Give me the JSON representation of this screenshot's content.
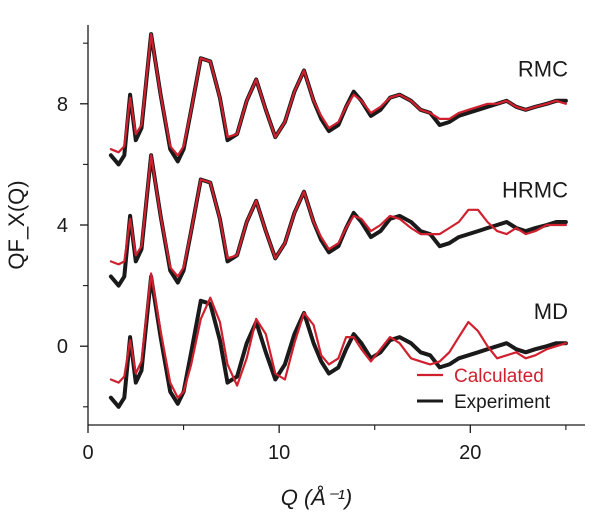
{
  "chart_data": {
    "type": "line",
    "xlabel": "Q (Å⁻¹)",
    "ylabel": "QF_X(Q)",
    "xlim": [
      0,
      26
    ],
    "ylim": [
      -2.6,
      10.6
    ],
    "x_ticks": [
      {
        "value": 0,
        "label": "0"
      },
      {
        "value": 10,
        "label": "10"
      },
      {
        "value": 20,
        "label": "20"
      }
    ],
    "y_ticks": [
      {
        "value": 0,
        "label": "0"
      },
      {
        "value": 4,
        "label": "4"
      },
      {
        "value": 8,
        "label": "8"
      }
    ],
    "x_minor_ticks": [
      5,
      15,
      25
    ],
    "y_minor_ticks": [
      -2,
      2,
      6,
      10
    ],
    "grid": false,
    "legend": {
      "placement": "bottom-right",
      "entries": [
        {
          "name": "Calculated",
          "color": "#d0202e"
        },
        {
          "name": "Experiment",
          "color": "#1a1a1a"
        }
      ]
    },
    "panels": [
      {
        "label": "RMC",
        "offset": 8,
        "series": [
          {
            "name": "Experiment",
            "color": "#1a1a1a",
            "x": [
              1.2,
              1.6,
              1.9,
              2.2,
              2.5,
              2.8,
              3.3,
              3.8,
              4.3,
              4.7,
              5.0,
              5.4,
              5.9,
              6.4,
              6.9,
              7.3,
              7.8,
              8.3,
              8.8,
              9.3,
              9.8,
              10.3,
              10.8,
              11.3,
              11.8,
              12.2,
              12.6,
              13.1,
              13.5,
              13.9,
              14.3,
              14.8,
              15.3,
              15.8,
              16.3,
              16.9,
              17.4,
              17.9,
              18.4,
              18.9,
              19.4,
              19.9,
              20.4,
              20.9,
              21.4,
              21.9,
              22.4,
              22.9,
              23.4,
              24.0,
              24.5,
              25.0
            ],
            "y": [
              -1.7,
              -2.0,
              -1.7,
              0.3,
              -1.2,
              -0.8,
              2.3,
              0.3,
              -1.5,
              -1.9,
              -1.5,
              -0.2,
              1.5,
              1.4,
              0.2,
              -1.2,
              -1.0,
              0.1,
              0.8,
              -0.2,
              -1.1,
              -0.6,
              0.4,
              1.1,
              0.1,
              -0.5,
              -0.9,
              -0.7,
              -0.1,
              0.4,
              0.1,
              -0.4,
              -0.2,
              0.2,
              0.3,
              0.1,
              -0.2,
              -0.3,
              -0.7,
              -0.6,
              -0.4,
              -0.3,
              -0.2,
              -0.1,
              0.0,
              0.1,
              -0.1,
              -0.2,
              -0.1,
              0.0,
              0.1,
              0.1
            ]
          },
          {
            "name": "Calculated",
            "color": "#d0202e",
            "x": [
              1.2,
              1.6,
              1.9,
              2.2,
              2.5,
              2.8,
              3.3,
              3.8,
              4.3,
              4.7,
              5.0,
              5.4,
              5.9,
              6.4,
              6.9,
              7.3,
              7.8,
              8.3,
              8.8,
              9.3,
              9.8,
              10.3,
              10.8,
              11.3,
              11.8,
              12.2,
              12.6,
              13.1,
              13.5,
              13.9,
              14.3,
              14.8,
              15.3,
              15.8,
              16.3,
              16.9,
              17.4,
              17.9,
              18.4,
              18.9,
              19.4,
              19.9,
              20.4,
              20.9,
              21.4,
              21.9,
              22.4,
              22.9,
              23.4,
              24.0,
              24.5,
              25.0
            ],
            "y": [
              -1.5,
              -1.6,
              -1.4,
              0.2,
              -1.0,
              -0.7,
              2.3,
              0.3,
              -1.4,
              -1.7,
              -1.4,
              -0.2,
              1.5,
              1.4,
              0.2,
              -1.1,
              -1.0,
              0.1,
              0.8,
              -0.2,
              -1.1,
              -0.6,
              0.4,
              1.1,
              0.1,
              -0.4,
              -0.8,
              -0.6,
              -0.1,
              0.3,
              0.1,
              -0.3,
              -0.1,
              0.2,
              0.3,
              0.1,
              -0.2,
              -0.3,
              -0.5,
              -0.5,
              -0.3,
              -0.2,
              -0.1,
              0.0,
              0.0,
              0.1,
              -0.1,
              -0.2,
              -0.1,
              0.0,
              0.1,
              0.0
            ]
          }
        ]
      },
      {
        "label": "HRMC",
        "offset": 4,
        "series": [
          {
            "name": "Experiment",
            "color": "#1a1a1a",
            "x": [
              1.2,
              1.6,
              1.9,
              2.2,
              2.5,
              2.8,
              3.3,
              3.8,
              4.3,
              4.7,
              5.0,
              5.4,
              5.9,
              6.4,
              6.9,
              7.3,
              7.8,
              8.3,
              8.8,
              9.3,
              9.8,
              10.3,
              10.8,
              11.3,
              11.8,
              12.2,
              12.6,
              13.1,
              13.5,
              13.9,
              14.3,
              14.8,
              15.3,
              15.8,
              16.3,
              16.9,
              17.4,
              17.9,
              18.4,
              18.9,
              19.4,
              19.9,
              20.4,
              20.9,
              21.4,
              21.9,
              22.4,
              22.9,
              23.4,
              24.0,
              24.5,
              25.0
            ],
            "y": [
              -1.7,
              -2.0,
              -1.7,
              0.3,
              -1.2,
              -0.8,
              2.3,
              0.3,
              -1.5,
              -1.9,
              -1.5,
              -0.2,
              1.5,
              1.4,
              0.2,
              -1.2,
              -1.0,
              0.1,
              0.8,
              -0.2,
              -1.1,
              -0.6,
              0.4,
              1.1,
              0.1,
              -0.5,
              -0.9,
              -0.7,
              -0.1,
              0.4,
              0.1,
              -0.4,
              -0.2,
              0.2,
              0.3,
              0.1,
              -0.2,
              -0.3,
              -0.7,
              -0.6,
              -0.4,
              -0.3,
              -0.2,
              -0.1,
              0.0,
              0.1,
              -0.1,
              -0.2,
              -0.1,
              0.0,
              0.1,
              0.1
            ]
          },
          {
            "name": "Calculated",
            "color": "#d0202e",
            "x": [
              1.2,
              1.6,
              1.9,
              2.2,
              2.5,
              2.8,
              3.3,
              3.8,
              4.3,
              4.7,
              5.0,
              5.4,
              5.9,
              6.4,
              6.9,
              7.3,
              7.8,
              8.3,
              8.8,
              9.3,
              9.8,
              10.3,
              10.8,
              11.3,
              11.8,
              12.2,
              12.6,
              13.1,
              13.5,
              13.9,
              14.3,
              14.8,
              15.3,
              15.8,
              16.3,
              16.9,
              17.4,
              17.9,
              18.4,
              18.9,
              19.4,
              19.9,
              20.4,
              20.9,
              21.4,
              21.9,
              22.4,
              22.9,
              23.4,
              24.0,
              24.5,
              25.0
            ],
            "y": [
              -1.2,
              -1.3,
              -1.2,
              0.2,
              -1.0,
              -0.7,
              2.3,
              0.3,
              -1.4,
              -1.7,
              -1.4,
              -0.2,
              1.5,
              1.4,
              0.2,
              -1.1,
              -1.0,
              0.1,
              0.8,
              -0.2,
              -1.1,
              -0.6,
              0.4,
              1.1,
              0.1,
              -0.4,
              -0.8,
              -0.6,
              -0.1,
              0.3,
              0.2,
              -0.2,
              0.0,
              0.3,
              0.2,
              -0.1,
              -0.3,
              -0.3,
              -0.3,
              -0.1,
              0.1,
              0.5,
              0.5,
              0.1,
              -0.2,
              -0.3,
              -0.1,
              -0.3,
              -0.2,
              0.0,
              0.0,
              0.0
            ]
          }
        ]
      },
      {
        "label": "MD",
        "offset": 0,
        "series": [
          {
            "name": "Experiment",
            "color": "#1a1a1a",
            "x": [
              1.2,
              1.6,
              1.9,
              2.2,
              2.5,
              2.8,
              3.3,
              3.8,
              4.3,
              4.7,
              5.0,
              5.4,
              5.9,
              6.4,
              6.9,
              7.3,
              7.8,
              8.3,
              8.8,
              9.3,
              9.8,
              10.3,
              10.8,
              11.3,
              11.8,
              12.2,
              12.6,
              13.1,
              13.5,
              13.9,
              14.3,
              14.8,
              15.3,
              15.8,
              16.3,
              16.9,
              17.4,
              17.9,
              18.4,
              18.9,
              19.4,
              19.9,
              20.4,
              20.9,
              21.4,
              21.9,
              22.4,
              22.9,
              23.4,
              24.0,
              24.5,
              25.0
            ],
            "y": [
              -1.7,
              -2.0,
              -1.7,
              0.3,
              -1.2,
              -0.8,
              2.3,
              0.3,
              -1.5,
              -1.9,
              -1.5,
              -0.2,
              1.5,
              1.4,
              0.2,
              -1.2,
              -1.0,
              0.1,
              0.8,
              -0.2,
              -1.1,
              -0.6,
              0.4,
              1.1,
              0.1,
              -0.5,
              -0.9,
              -0.7,
              -0.1,
              0.4,
              0.1,
              -0.4,
              -0.2,
              0.2,
              0.3,
              0.1,
              -0.2,
              -0.3,
              -0.7,
              -0.6,
              -0.4,
              -0.3,
              -0.2,
              -0.1,
              0.0,
              0.1,
              -0.1,
              -0.2,
              -0.1,
              0.0,
              0.1,
              0.1
            ]
          },
          {
            "name": "Calculated",
            "color": "#d0202e",
            "x": [
              1.2,
              1.6,
              1.9,
              2.2,
              2.5,
              2.8,
              3.3,
              3.8,
              4.3,
              4.7,
              5.0,
              5.4,
              5.9,
              6.4,
              6.9,
              7.3,
              7.8,
              8.3,
              8.8,
              9.3,
              9.8,
              10.3,
              10.8,
              11.3,
              11.8,
              12.2,
              12.6,
              13.1,
              13.5,
              13.9,
              14.3,
              14.8,
              15.3,
              15.8,
              16.3,
              16.9,
              17.4,
              17.9,
              18.4,
              18.9,
              19.4,
              19.9,
              20.4,
              20.9,
              21.4,
              21.9,
              22.4,
              22.9,
              23.4,
              24.0,
              24.5,
              25.0
            ],
            "y": [
              -1.1,
              -1.2,
              -1.0,
              0.2,
              -0.9,
              -0.5,
              2.4,
              0.5,
              -1.2,
              -1.7,
              -1.5,
              -0.6,
              0.9,
              1.6,
              0.8,
              -0.6,
              -1.3,
              -0.4,
              0.9,
              0.4,
              -0.9,
              -1.1,
              0.1,
              1.1,
              0.7,
              -0.3,
              -0.6,
              -0.4,
              0.3,
              0.3,
              -0.1,
              -0.5,
              -0.1,
              0.3,
              0.1,
              -0.4,
              -0.5,
              -0.6,
              -0.5,
              -0.2,
              0.3,
              0.8,
              0.5,
              0.0,
              -0.4,
              -0.3,
              -0.2,
              -0.4,
              -0.3,
              -0.1,
              0.0,
              0.1
            ]
          }
        ]
      }
    ]
  }
}
